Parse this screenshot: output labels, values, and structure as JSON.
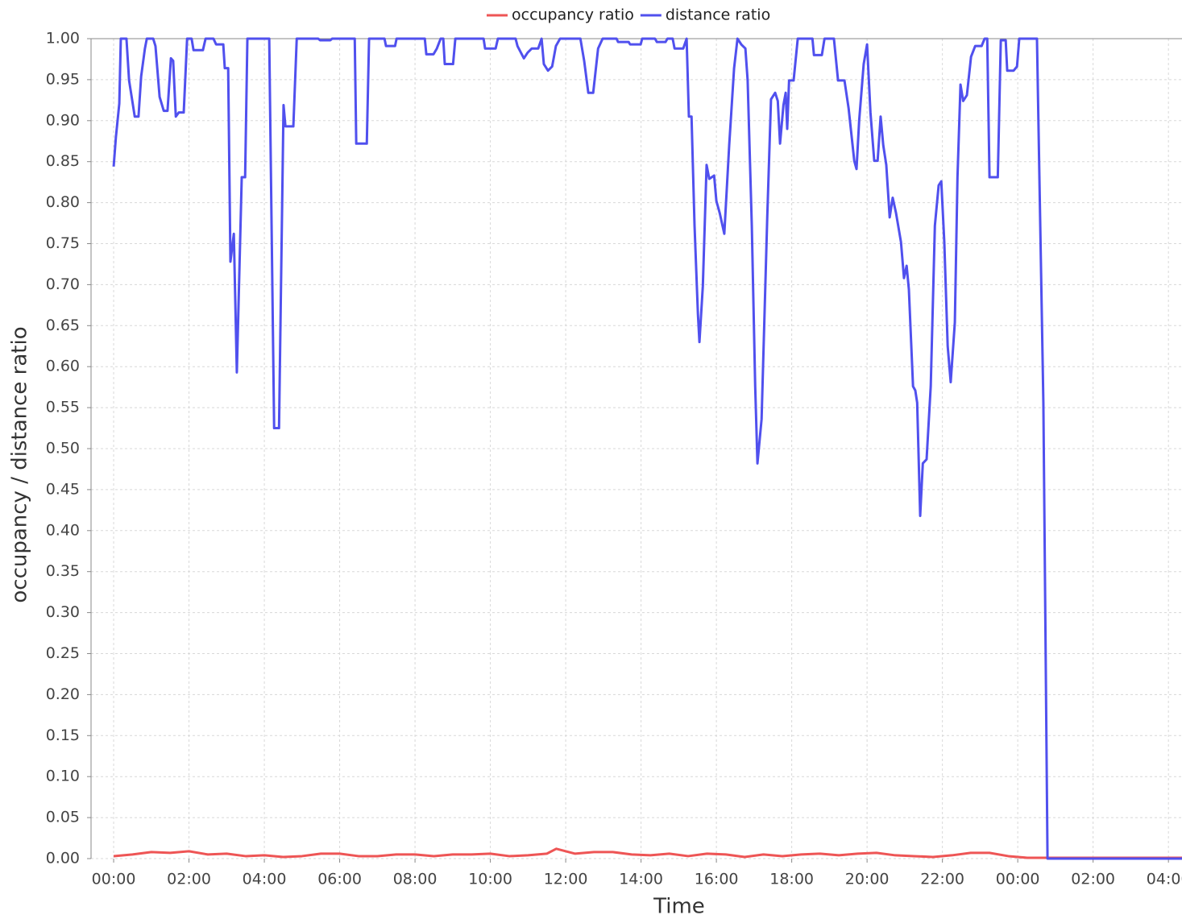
{
  "chart_data": {
    "type": "line",
    "xlabel": "Time",
    "ylabel": "occupancy / distance ratio",
    "xlim": [
      -0.6,
      28.36
    ],
    "ylim": [
      0,
      1
    ],
    "grid": true,
    "legend": "top",
    "xticks": [
      {
        "value": 0,
        "label": "00:00"
      },
      {
        "value": 2,
        "label": "02:00"
      },
      {
        "value": 4,
        "label": "04:00"
      },
      {
        "value": 6,
        "label": "06:00"
      },
      {
        "value": 8,
        "label": "08:00"
      },
      {
        "value": 10,
        "label": "10:00"
      },
      {
        "value": 12,
        "label": "12:00"
      },
      {
        "value": 14,
        "label": "14:00"
      },
      {
        "value": 16,
        "label": "16:00"
      },
      {
        "value": 18,
        "label": "18:00"
      },
      {
        "value": 20,
        "label": "20:00"
      },
      {
        "value": 22,
        "label": "22:00"
      },
      {
        "value": 24,
        "label": "00:00"
      },
      {
        "value": 26,
        "label": "02:00"
      },
      {
        "value": 28,
        "label": "04:00"
      }
    ],
    "yticks": [
      {
        "value": 0,
        "label": "0.00"
      },
      {
        "value": 0.05,
        "label": "0.05"
      },
      {
        "value": 0.1,
        "label": "0.10"
      },
      {
        "value": 0.15,
        "label": "0.15"
      },
      {
        "value": 0.2,
        "label": "0.20"
      },
      {
        "value": 0.25,
        "label": "0.25"
      },
      {
        "value": 0.3,
        "label": "0.30"
      },
      {
        "value": 0.35,
        "label": "0.35"
      },
      {
        "value": 0.4,
        "label": "0.40"
      },
      {
        "value": 0.45,
        "label": "0.45"
      },
      {
        "value": 0.5,
        "label": "0.50"
      },
      {
        "value": 0.55,
        "label": "0.55"
      },
      {
        "value": 0.6,
        "label": "0.60"
      },
      {
        "value": 0.65,
        "label": "0.65"
      },
      {
        "value": 0.7,
        "label": "0.70"
      },
      {
        "value": 0.75,
        "label": "0.75"
      },
      {
        "value": 0.8,
        "label": "0.80"
      },
      {
        "value": 0.85,
        "label": "0.85"
      },
      {
        "value": 0.9,
        "label": "0.90"
      },
      {
        "value": 0.95,
        "label": "0.95"
      },
      {
        "value": 1,
        "label": "1.00"
      }
    ],
    "series": [
      {
        "name": "occupancy ratio",
        "color": "#ee5555",
        "x": [
          0,
          0.5,
          1,
          1.5,
          2,
          2.5,
          3,
          3.5,
          4,
          4.5,
          5,
          5.5,
          6,
          6.5,
          7,
          7.5,
          8,
          8.5,
          9,
          9.5,
          10,
          10.5,
          11,
          11.5,
          11.75,
          12.25,
          12.75,
          13.25,
          13.75,
          14.25,
          14.75,
          15.25,
          15.75,
          16.25,
          16.75,
          17.25,
          17.75,
          18.25,
          18.75,
          19.25,
          19.75,
          20.25,
          20.75,
          21.25,
          21.75,
          22.25,
          22.75,
          23.25,
          23.75,
          24.25,
          28.36
        ],
        "values": [
          0.003,
          0.005,
          0.008,
          0.007,
          0.009,
          0.005,
          0.006,
          0.003,
          0.004,
          0.002,
          0.003,
          0.006,
          0.006,
          0.003,
          0.003,
          0.005,
          0.005,
          0.003,
          0.005,
          0.005,
          0.006,
          0.003,
          0.004,
          0.006,
          0.012,
          0.006,
          0.008,
          0.008,
          0.005,
          0.004,
          0.006,
          0.003,
          0.006,
          0.005,
          0.002,
          0.005,
          0.003,
          0.005,
          0.006,
          0.004,
          0.006,
          0.007,
          0.004,
          0.003,
          0.002,
          0.004,
          0.007,
          0.007,
          0.003,
          0.001,
          0.001
        ]
      },
      {
        "name": "distance ratio",
        "color": "#5050ee",
        "x": [
          0,
          0.06,
          0.15,
          0.19,
          0.34,
          0.41,
          0.56,
          0.66,
          0.73,
          0.83,
          0.88,
          1.05,
          1.11,
          1.22,
          1.33,
          1.43,
          1.52,
          1.58,
          1.65,
          1.73,
          1.86,
          1.95,
          2.07,
          2.12,
          2.37,
          2.44,
          2.65,
          2.72,
          2.91,
          2.95,
          3.04,
          3.1,
          3.19,
          3.27,
          3.4,
          3.49,
          3.55,
          4.13,
          4.26,
          4.39,
          4.51,
          4.56,
          4.77,
          4.86,
          5.43,
          5.48,
          5.75,
          5.8,
          6.4,
          6.44,
          6.72,
          6.78,
          7.19,
          7.23,
          7.47,
          7.51,
          8.26,
          8.3,
          8.49,
          8.58,
          8.68,
          8.75,
          8.79,
          9.01,
          9.07,
          9.82,
          9.86,
          10.14,
          10.2,
          10.67,
          10.72,
          10.89,
          10.99,
          11.1,
          11.27,
          11.36,
          11.42,
          11.53,
          11.64,
          11.74,
          11.85,
          12.39,
          12.49,
          12.6,
          12.73,
          12.86,
          12.98,
          13.35,
          13.39,
          13.67,
          13.71,
          13.99,
          14.03,
          14.37,
          14.42,
          14.65,
          14.7,
          14.84,
          14.89,
          15.12,
          15.21,
          15.27,
          15.34,
          15.42,
          15.51,
          15.55,
          15.64,
          15.74,
          15.81,
          15.94,
          16.0,
          16.09,
          16.21,
          16.34,
          16.47,
          16.56,
          16.66,
          16.77,
          16.83,
          16.94,
          17.03,
          17.09,
          17.2,
          17.35,
          17.45,
          17.56,
          17.63,
          17.69,
          17.78,
          17.84,
          17.88,
          17.93,
          18.05,
          18.16,
          18.55,
          18.59,
          18.8,
          18.87,
          19.12,
          19.23,
          19.4,
          19.51,
          19.66,
          19.72,
          19.79,
          19.91,
          20.0,
          20.09,
          20.19,
          20.28,
          20.36,
          20.43,
          20.51,
          20.6,
          20.68,
          20.77,
          20.9,
          20.98,
          21.05,
          21.11,
          21.22,
          21.28,
          21.33,
          21.41,
          21.48,
          21.58,
          21.69,
          21.8,
          21.9,
          21.97,
          22.05,
          22.14,
          22.22,
          22.33,
          22.4,
          22.48,
          22.55,
          22.65,
          22.76,
          22.87,
          23.04,
          23.12,
          23.19,
          23.25,
          23.47,
          23.55,
          23.68,
          23.72,
          23.89,
          23.98,
          24.04,
          24.51,
          24.68,
          24.79,
          28.36
        ],
        "values": [
          0.844,
          0.88,
          0.921,
          1,
          1,
          0.949,
          0.905,
          0.905,
          0.954,
          0.988,
          1,
          1,
          0.991,
          0.929,
          0.912,
          0.912,
          0.976,
          0.973,
          0.905,
          0.91,
          0.91,
          1,
          1,
          0.986,
          0.986,
          1,
          1,
          0.993,
          0.993,
          0.964,
          0.964,
          0.728,
          0.762,
          0.593,
          0.831,
          0.831,
          1,
          1,
          0.525,
          0.525,
          0.919,
          0.893,
          0.893,
          1,
          1,
          0.998,
          0.998,
          1,
          1,
          0.872,
          0.872,
          1,
          1,
          0.991,
          0.991,
          1,
          1,
          0.981,
          0.981,
          0.988,
          1,
          1,
          0.969,
          0.969,
          1,
          1,
          0.988,
          0.988,
          1,
          1,
          0.991,
          0.976,
          0.983,
          0.988,
          0.988,
          1,
          0.969,
          0.961,
          0.966,
          0.991,
          1,
          1,
          0.973,
          0.934,
          0.934,
          0.988,
          1,
          1,
          0.996,
          0.996,
          0.993,
          0.993,
          1,
          1,
          0.996,
          0.996,
          1,
          1,
          0.988,
          0.988,
          1,
          0.905,
          0.905,
          0.772,
          0.664,
          0.63,
          0.698,
          0.846,
          0.829,
          0.833,
          0.802,
          0.787,
          0.762,
          0.87,
          0.964,
          1,
          0.993,
          0.988,
          0.949,
          0.772,
          0.576,
          0.482,
          0.536,
          0.782,
          0.926,
          0.934,
          0.924,
          0.872,
          0.919,
          0.934,
          0.89,
          0.949,
          0.949,
          1,
          1,
          0.98,
          0.98,
          1,
          1,
          0.949,
          0.949,
          0.915,
          0.851,
          0.841,
          0.9,
          0.969,
          0.993,
          0.91,
          0.851,
          0.851,
          0.905,
          0.87,
          0.846,
          0.782,
          0.806,
          0.787,
          0.752,
          0.708,
          0.723,
          0.694,
          0.576,
          0.571,
          0.556,
          0.418,
          0.482,
          0.487,
          0.576,
          0.772,
          0.821,
          0.826,
          0.752,
          0.625,
          0.581,
          0.654,
          0.831,
          0.944,
          0.924,
          0.931,
          0.978,
          0.991,
          0.991,
          1,
          1,
          0.831,
          0.831,
          0.998,
          0.998,
          0.961,
          0.961,
          0.966,
          1,
          1,
          0.556,
          0,
          0
        ]
      }
    ]
  }
}
